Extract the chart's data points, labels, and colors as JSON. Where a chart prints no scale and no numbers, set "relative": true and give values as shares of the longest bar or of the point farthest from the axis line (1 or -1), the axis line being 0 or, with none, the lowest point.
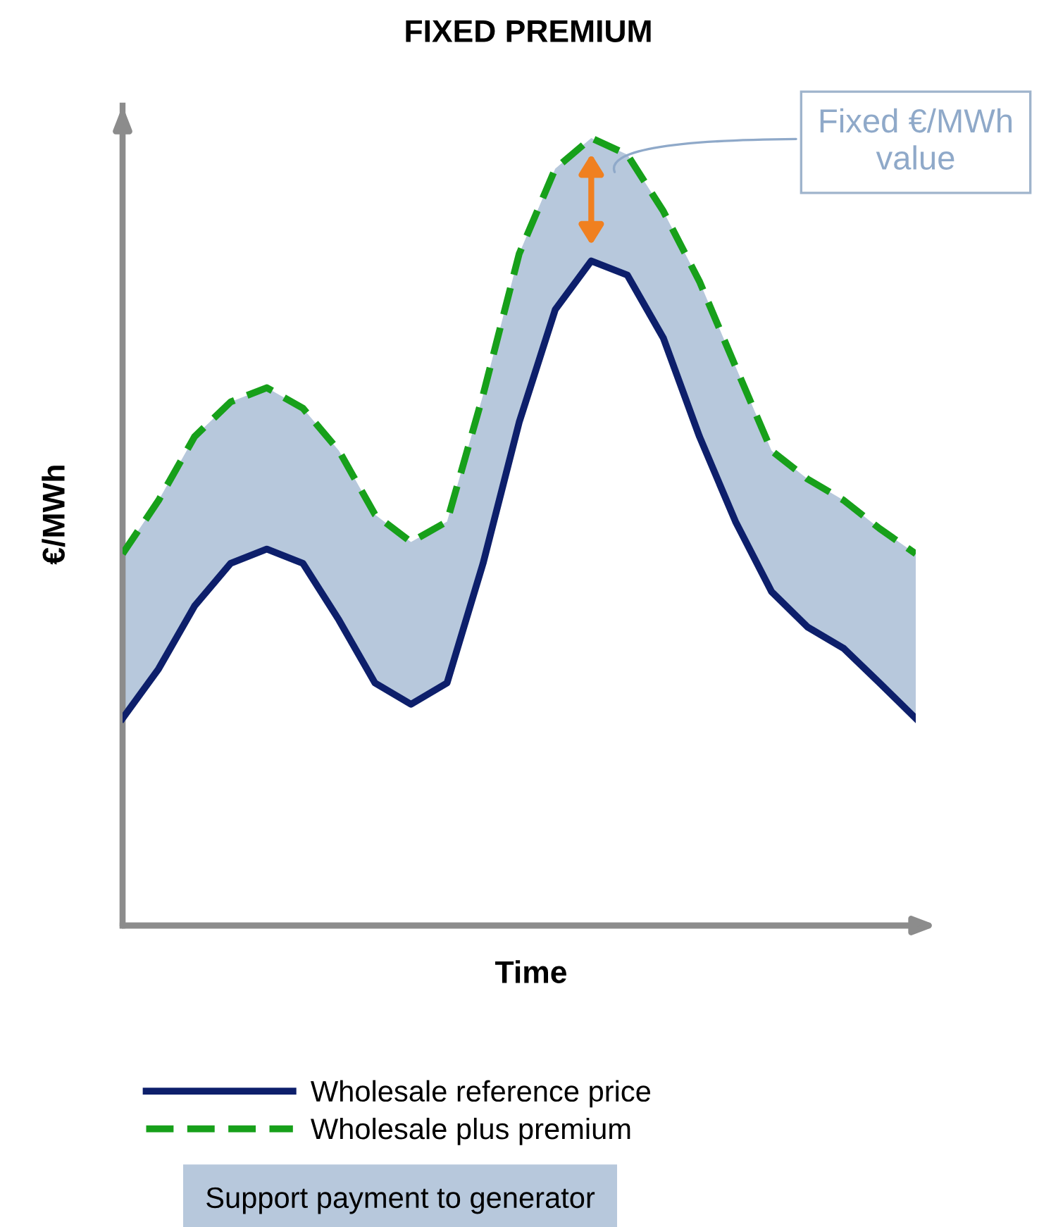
{
  "chart_data": {
    "type": "line",
    "title": "FIXED PREMIUM",
    "xlabel": "Time",
    "ylabel": "€/MWh",
    "relative": true,
    "legend": "bottom",
    "categories": [
      null,
      null,
      null,
      null,
      null,
      null,
      null,
      null,
      null,
      null,
      null,
      null,
      null,
      null,
      null,
      null,
      null,
      null,
      null,
      null,
      null,
      null,
      null
    ],
    "series": [
      {
        "name": "Wholesale reference price",
        "color": "#0d1f6b",
        "line_style": "solid",
        "values": [
          0.263,
          0.326,
          0.406,
          0.46,
          0.478,
          0.46,
          0.388,
          0.308,
          0.281,
          0.308,
          0.46,
          0.639,
          0.782,
          0.844,
          0.826,
          0.746,
          0.621,
          0.513,
          0.424,
          0.379,
          0.352,
          0.308,
          0.263
        ]
      },
      {
        "name": "Wholesale plus premium",
        "color": "#17a01a",
        "line_style": "dashed",
        "values": [
          0.472,
          0.54,
          0.621,
          0.665,
          0.683,
          0.657,
          0.603,
          0.522,
          0.487,
          0.513,
          0.674,
          0.853,
          0.961,
          1.0,
          0.979,
          0.907,
          0.818,
          0.71,
          0.603,
          0.567,
          0.54,
          0.504,
          0.472
        ],
        "lower": [
          0.263,
          0.326,
          0.406,
          0.46,
          0.478,
          0.46,
          0.388,
          0.308,
          0.281,
          0.308,
          0.46,
          0.639,
          0.782,
          0.844,
          0.826,
          0.746,
          0.621,
          0.513,
          0.424,
          0.379,
          0.352,
          0.308,
          0.263
        ],
        "upper": [
          0.472,
          0.54,
          0.621,
          0.665,
          0.683,
          0.657,
          0.603,
          0.522,
          0.487,
          0.513,
          0.674,
          0.853,
          0.961,
          1.0,
          0.979,
          0.907,
          0.818,
          0.71,
          0.603,
          0.567,
          0.54,
          0.504,
          0.472
        ]
      }
    ],
    "annotations": [
      "Fixed €/MWh\nvalue",
      "Support payment to generator"
    ]
  }
}
